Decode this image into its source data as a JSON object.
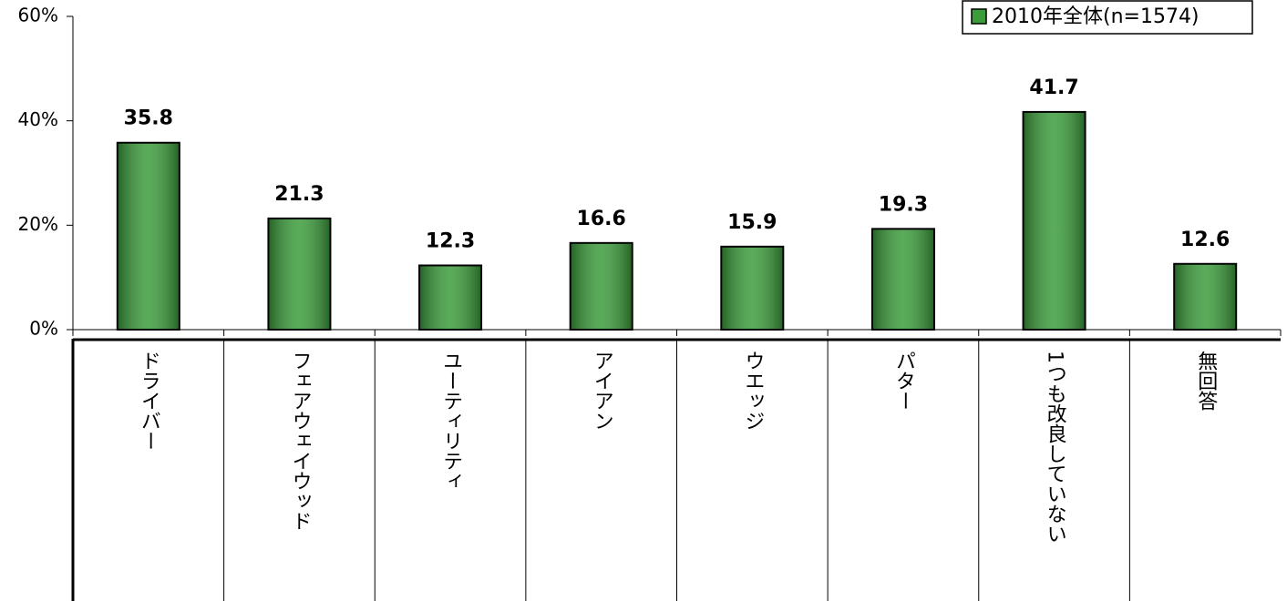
{
  "chart_data": {
    "type": "bar",
    "categories": [
      "ドライバー",
      "フェアウェイウッド",
      "ユーティリティ",
      "アイアン",
      "ウエッジ",
      "パター",
      "1つも改良していない",
      "無回答"
    ],
    "series": [
      {
        "name": "2010年全体(n=1574)",
        "color": "#3c9c3c",
        "values": [
          35.8,
          21.3,
          12.3,
          16.6,
          15.9,
          19.3,
          41.7,
          12.6
        ]
      }
    ],
    "ylim": [
      0,
      60
    ],
    "yticks": [
      {
        "value": 0,
        "label": "0%"
      },
      {
        "value": 20,
        "label": "20%"
      },
      {
        "value": 40,
        "label": "40%"
      },
      {
        "value": 60,
        "label": "60%"
      }
    ],
    "legend": "top-right"
  }
}
